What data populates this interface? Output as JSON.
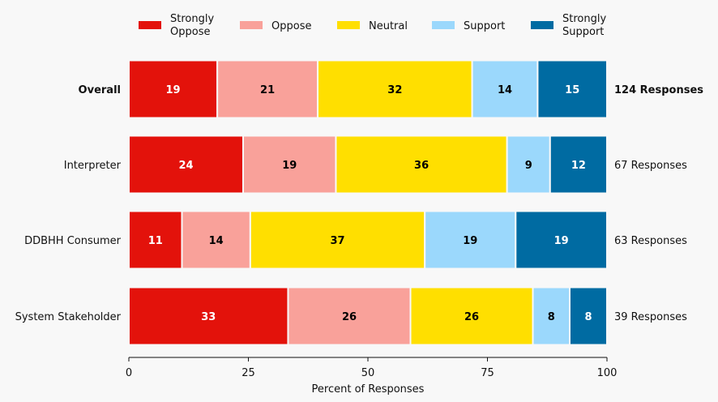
{
  "chart_data": {
    "type": "bar",
    "orientation": "horizontal-stacked",
    "legend_placement": "top",
    "legend": [
      {
        "key": "strongly_oppose",
        "lines": [
          "Strongly",
          "Oppose"
        ],
        "color": "#e3120b"
      },
      {
        "key": "oppose",
        "lines": [
          "Oppose"
        ],
        "color": "#f9a19a"
      },
      {
        "key": "neutral",
        "lines": [
          "Neutral"
        ],
        "color": "#ffdf00"
      },
      {
        "key": "support",
        "lines": [
          "Support"
        ],
        "color": "#9bd8fc"
      },
      {
        "key": "strongly_support",
        "lines": [
          "Strongly",
          "Support"
        ],
        "color": "#006ba2"
      }
    ],
    "categories": [
      "Overall",
      "Interpreter",
      "DDBHH Consumer",
      "System Stakeholder"
    ],
    "bold_categories": [
      "Overall"
    ],
    "series": [
      {
        "name": "Strongly Oppose",
        "values": [
          19,
          24,
          11,
          33
        ]
      },
      {
        "name": "Oppose",
        "values": [
          21,
          19,
          14,
          26
        ]
      },
      {
        "name": "Neutral",
        "values": [
          32,
          36,
          37,
          26
        ]
      },
      {
        "name": "Support",
        "values": [
          14,
          9,
          19,
          8
        ]
      },
      {
        "name": "Strongly Support",
        "values": [
          15,
          12,
          19,
          8
        ]
      }
    ],
    "widths": [
      [
        18.5,
        21.0,
        32.3,
        13.7,
        14.5
      ],
      [
        23.9,
        19.4,
        35.8,
        9.0,
        11.9
      ],
      [
        11.1,
        14.3,
        36.5,
        19.0,
        19.1
      ],
      [
        33.3,
        25.6,
        25.6,
        7.7,
        7.8
      ]
    ],
    "label_colors": [
      "#ffffff",
      "#000000",
      "#000000",
      "#000000",
      "#ffffff"
    ],
    "responses": [
      "124 Responses",
      "67 Responses",
      "63 Responses",
      "39 Responses"
    ],
    "xlabel": "Percent of Responses",
    "xlim": [
      0,
      100
    ],
    "xticks": [
      "0",
      "25",
      "50",
      "75",
      "100"
    ]
  }
}
